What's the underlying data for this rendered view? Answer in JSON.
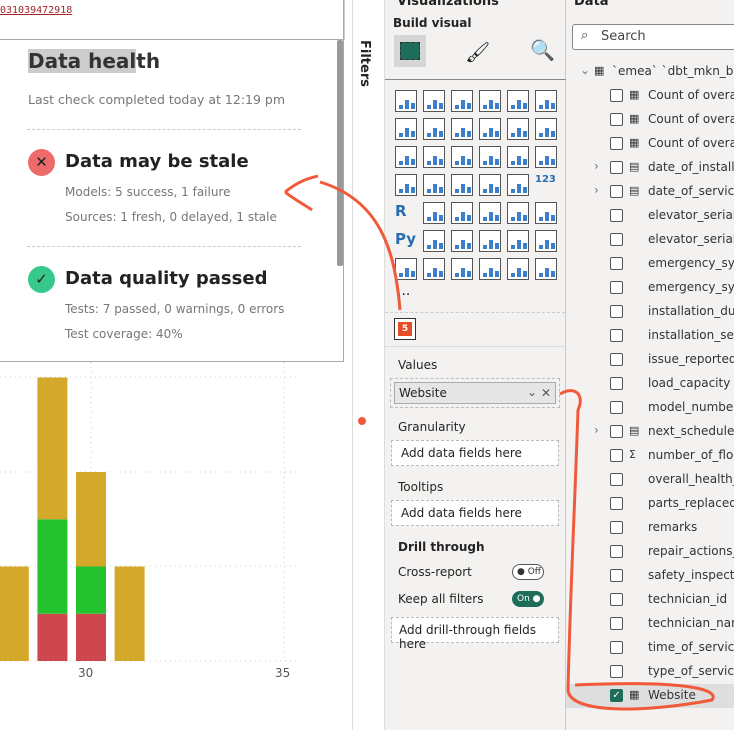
{
  "url_fragment": "031039472918",
  "health": {
    "title_highlight": "Data heal",
    "title_rest": "th",
    "last_check": "Last check completed today at 12:19 pm",
    "items": [
      {
        "status": "fail",
        "icon": "x-icon",
        "color": "#ee6b6b",
        "title": "Data may be stale",
        "lines": [
          "Models: 5 success, 1 failure",
          "Sources: 1 fresh, 0 delayed, 1 stale"
        ]
      },
      {
        "status": "pass",
        "icon": "check-icon",
        "color": "#36c98b",
        "title": "Data quality passed",
        "lines": [
          "Tests: 7 passed, 0 warnings, 0 errors",
          "Test coverage: 40%"
        ]
      }
    ]
  },
  "filters_label": "Filters",
  "chart_data": {
    "type": "bar",
    "stacked": true,
    "x": [
      28,
      29,
      30,
      31
    ],
    "series": [
      {
        "color": "#cd474c",
        "values": [
          0,
          0.5,
          0.5,
          0
        ]
      },
      {
        "color": "#22c32e",
        "values": [
          0,
          1,
          0.5,
          0
        ]
      },
      {
        "color": "#d4a82a",
        "values": [
          1,
          1.5,
          1,
          1
        ]
      }
    ],
    "x_ticks": [
      "30",
      "35"
    ],
    "grid": true
  },
  "viz": {
    "title": "Visualizations",
    "build_visual": "Build visual",
    "values_label": "Values",
    "values_field": "Website",
    "granularity_label": "Granularity",
    "granularity_placeholder": "Add data fields here",
    "tooltips_label": "Tooltips",
    "tooltips_placeholder": "Add data fields here",
    "drill_label": "Drill through",
    "cross_report": "Cross-report",
    "cross_report_state": "Off",
    "keep_filters": "Keep all filters",
    "keep_filters_state": "On",
    "drill_placeholder": "Add drill-through fields here",
    "more": "...",
    "r_label": "R",
    "py_label": "Py",
    "card_label": "123"
  },
  "data": {
    "title": "Data",
    "search_placeholder": "Search",
    "table": "`emea` `dbt_mkn_bron...",
    "fields": [
      {
        "label": "Count of overal...",
        "icon": "calculator-icon",
        "checked": false
      },
      {
        "label": "Count of overal...",
        "icon": "calculator-icon",
        "checked": false
      },
      {
        "label": "Count of overal...",
        "icon": "calculator-icon",
        "checked": false
      },
      {
        "label": "date_of_installa...",
        "icon": "calendar-icon",
        "checked": false,
        "expandable": true
      },
      {
        "label": "date_of_service",
        "icon": "calendar-icon",
        "checked": false,
        "expandable": true
      },
      {
        "label": "elevator_serial_...",
        "checked": false
      },
      {
        "label": "elevator_serial_...",
        "checked": false
      },
      {
        "label": "emergency_syst...",
        "checked": false
      },
      {
        "label": "emergency_syst...",
        "checked": false
      },
      {
        "label": "installation_dur...",
        "checked": false
      },
      {
        "label": "installation_serv...",
        "checked": false
      },
      {
        "label": "issue_reported",
        "checked": false
      },
      {
        "label": "load_capacity",
        "checked": false
      },
      {
        "label": "model_number",
        "checked": false
      },
      {
        "label": "next_scheduled...",
        "icon": "calendar-icon",
        "checked": false,
        "expandable": true
      },
      {
        "label": "number_of_floo...",
        "icon": "sigma-icon",
        "checked": false
      },
      {
        "label": "overall_health_c...",
        "checked": false
      },
      {
        "label": "parts_replaced",
        "checked": false
      },
      {
        "label": "remarks",
        "checked": false
      },
      {
        "label": "repair_actions_t...",
        "checked": false
      },
      {
        "label": "safety_inspectio...",
        "checked": false
      },
      {
        "label": "technician_id",
        "checked": false
      },
      {
        "label": "technician_name",
        "checked": false
      },
      {
        "label": "time_of_service",
        "checked": false
      },
      {
        "label": "type_of_service",
        "checked": false
      },
      {
        "label": "Website",
        "icon": "calculator-icon",
        "checked": true
      }
    ]
  }
}
